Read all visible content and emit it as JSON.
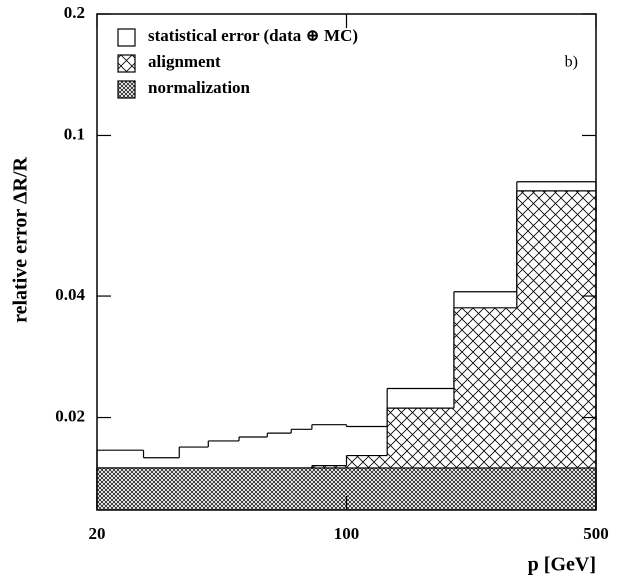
{
  "chart_data": {
    "type": "histogram",
    "annotation": "b)",
    "x_label": "p [GeV]",
    "y_label": "relative error ΔR/R",
    "bins": [
      20,
      27,
      34,
      41,
      50,
      60,
      70,
      80,
      100,
      130,
      200,
      300,
      500
    ],
    "xlim": [
      20,
      500
    ],
    "xticks": [
      20,
      100,
      500
    ],
    "x_log": true,
    "ylim": [
      0.0118,
      0.2
    ],
    "yticks": [
      0.02,
      0.04,
      0.1,
      0.2
    ],
    "y_log": true,
    "legend": "top-left",
    "series": [
      {
        "name": "statistical error (data ⊕ MC)",
        "color": "#000000",
        "hatch": "none",
        "values": [
          0.0166,
          0.0159,
          0.0169,
          0.0175,
          0.0179,
          0.0183,
          0.0187,
          0.0192,
          0.019,
          0.0236,
          0.041,
          0.0768
        ]
      },
      {
        "name": "alignment",
        "color": "#000000",
        "hatch": "cross",
        "values": [
          0.015,
          0.015,
          0.015,
          0.015,
          0.015,
          0.015,
          0.015,
          0.0152,
          0.0161,
          0.0211,
          0.0374,
          0.0729
        ]
      },
      {
        "name": "normalization",
        "color": "#000000",
        "hatch": "dense",
        "values": [
          0.015,
          0.015,
          0.015,
          0.015,
          0.015,
          0.015,
          0.015,
          0.015,
          0.015,
          0.015,
          0.015,
          0.015
        ]
      }
    ]
  }
}
